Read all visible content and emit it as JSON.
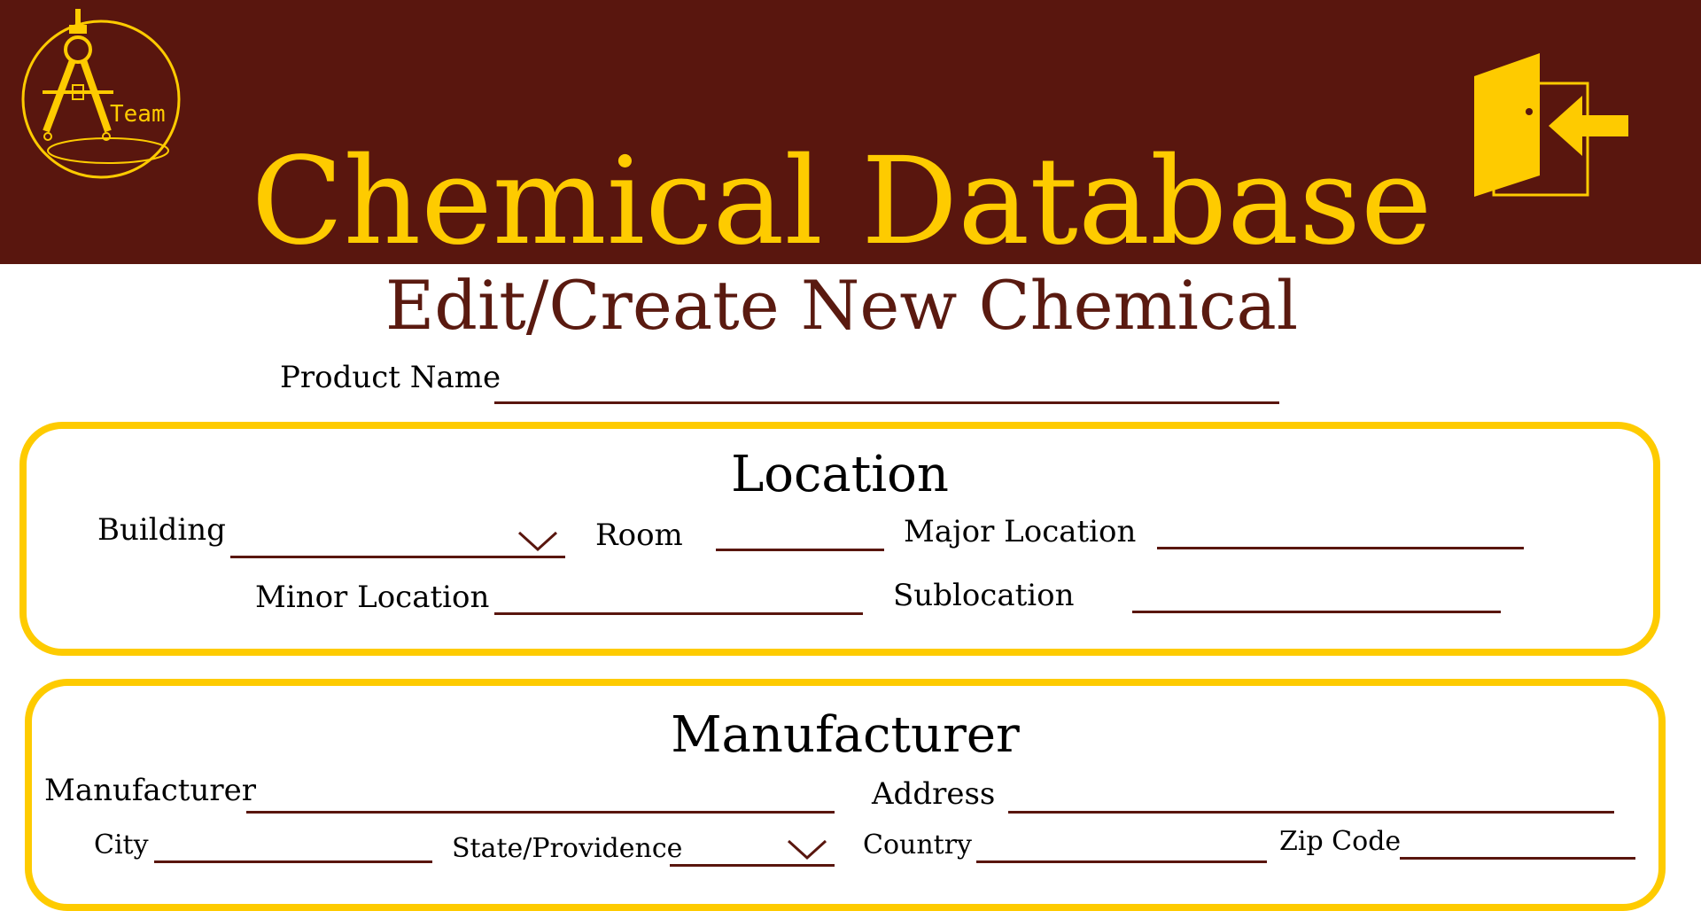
{
  "header": {
    "logo_text": "Team",
    "title": "Chemical Database"
  },
  "form": {
    "title": "Edit/Create New Chemical",
    "product_name": {
      "label": "Product Name",
      "value": ""
    }
  },
  "location": {
    "title": "Location",
    "building": {
      "label": "Building",
      "value": ""
    },
    "room": {
      "label": "Room",
      "value": ""
    },
    "major_location": {
      "label": "Major Location",
      "value": ""
    },
    "minor_location": {
      "label": "Minor Location",
      "value": ""
    },
    "sublocation": {
      "label": "Sublocation",
      "value": ""
    }
  },
  "manufacturer": {
    "title": "Manufacturer",
    "manufacturer": {
      "label": "Manufacturer",
      "value": ""
    },
    "address": {
      "label": "Address",
      "value": ""
    },
    "city": {
      "label": "City",
      "value": ""
    },
    "state": {
      "label": "State/Providence",
      "value": ""
    },
    "country": {
      "label": "Country",
      "value": ""
    },
    "zip": {
      "label": "Zip Code",
      "value": ""
    }
  },
  "colors": {
    "header_bg": "#59160e",
    "accent_gold": "#fecb00",
    "title_maroon": "#5a1a10"
  },
  "icons": {
    "logo": "compass-logo-icon",
    "exit": "exit-door-icon",
    "dropdown": "chevron-down-icon"
  }
}
